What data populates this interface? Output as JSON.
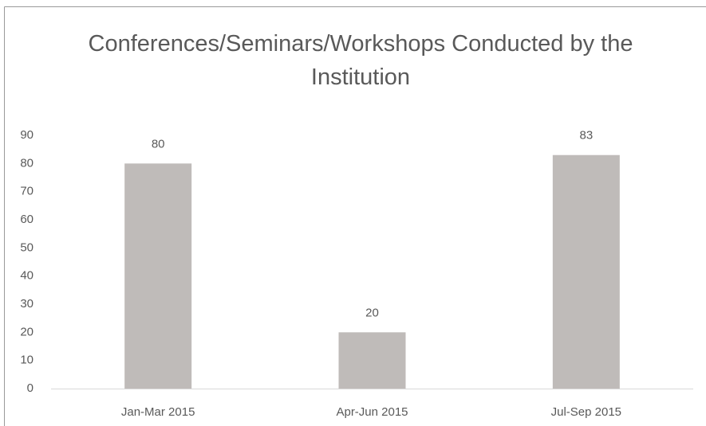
{
  "chart_data": {
    "type": "bar",
    "title": "Conferences/Seminars/Workshops Conducted by the Institution",
    "categories": [
      "Jan-Mar 2015",
      "Apr-Jun 2015",
      "Jul-Sep 2015"
    ],
    "values": [
      80,
      20,
      83
    ],
    "color": "#bfbbb9",
    "ylim": [
      0,
      90
    ],
    "yticks": [
      0,
      10,
      20,
      30,
      40,
      50,
      60,
      70,
      80,
      90
    ],
    "grid": false
  }
}
